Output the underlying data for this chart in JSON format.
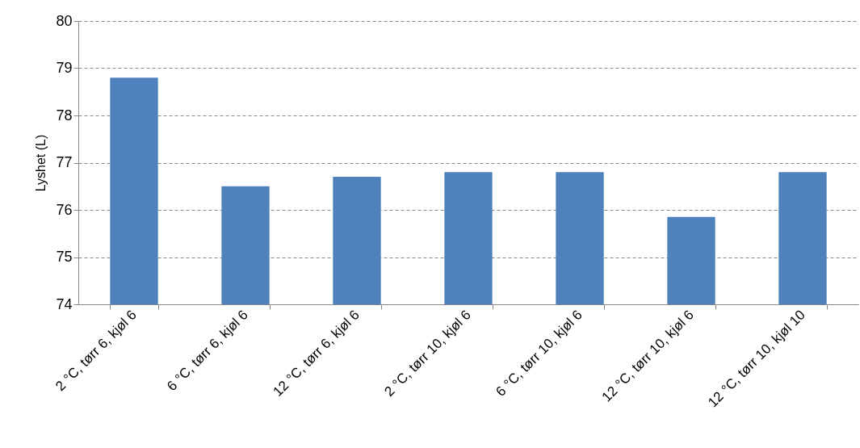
{
  "chart_data": {
    "type": "bar",
    "ylabel": "Lyshet (L)",
    "categories": [
      "2 °C, tørr 6, kjøl 6",
      "6 °C, tørr 6, kjøl 6",
      "12 °C, tørr 6, kjøl 6",
      "2 °C, tørr 10, kjøl 6",
      "6 °C, tørr 10, kjøl 6",
      "12 °C, tørr 10, kjøl 6",
      "12 °C, tørr 10, kjøl 10"
    ],
    "values": [
      78.8,
      76.5,
      76.7,
      76.8,
      76.8,
      75.85,
      76.8
    ],
    "color": "#4f81bd",
    "ylim": [
      74,
      80
    ],
    "yticks": [
      74,
      75,
      76,
      77,
      78,
      79,
      80
    ],
    "grid": "y"
  }
}
